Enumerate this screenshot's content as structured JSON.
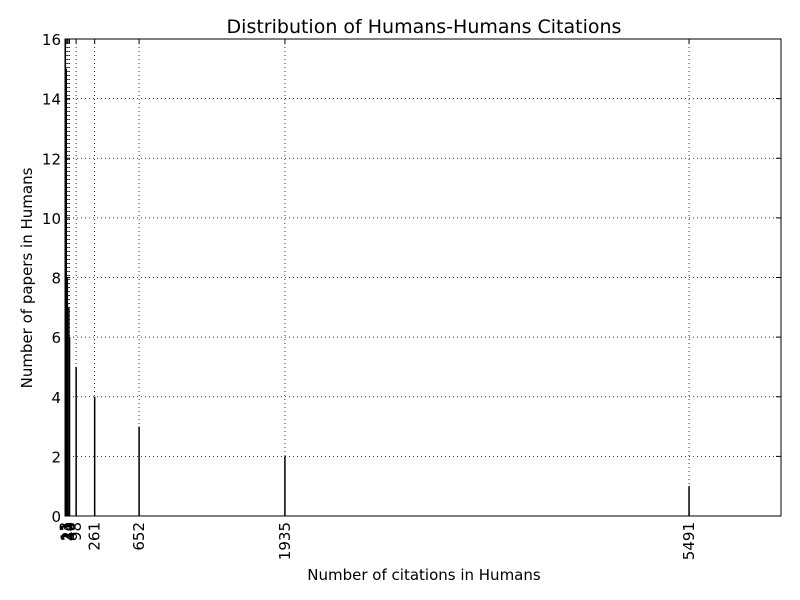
{
  "chart_data": {
    "type": "bar",
    "title": "Distribution of Humans-Humans Citations",
    "xlabel": "Number of citations in Humans",
    "ylabel": "Number of papers in Humans",
    "xlim": [
      0,
      6300
    ],
    "ylim": [
      0,
      16
    ],
    "grid": true,
    "y_ticks": [
      0,
      2,
      4,
      6,
      8,
      10,
      12,
      14,
      16
    ],
    "x_ticks": [
      3,
      11,
      21,
      34,
      40,
      98,
      261,
      652,
      1935,
      5491
    ],
    "x_tick_labels": [
      "3",
      "11",
      "21",
      "34",
      "40",
      "98",
      "261",
      "652",
      "1935",
      "5491"
    ],
    "series": [
      {
        "x": [
          3,
          11,
          21,
          34,
          40,
          98,
          261,
          652,
          1935,
          5491
        ],
        "values": [
          16,
          15,
          8,
          7,
          6,
          5,
          4,
          3,
          2,
          1
        ]
      }
    ]
  }
}
